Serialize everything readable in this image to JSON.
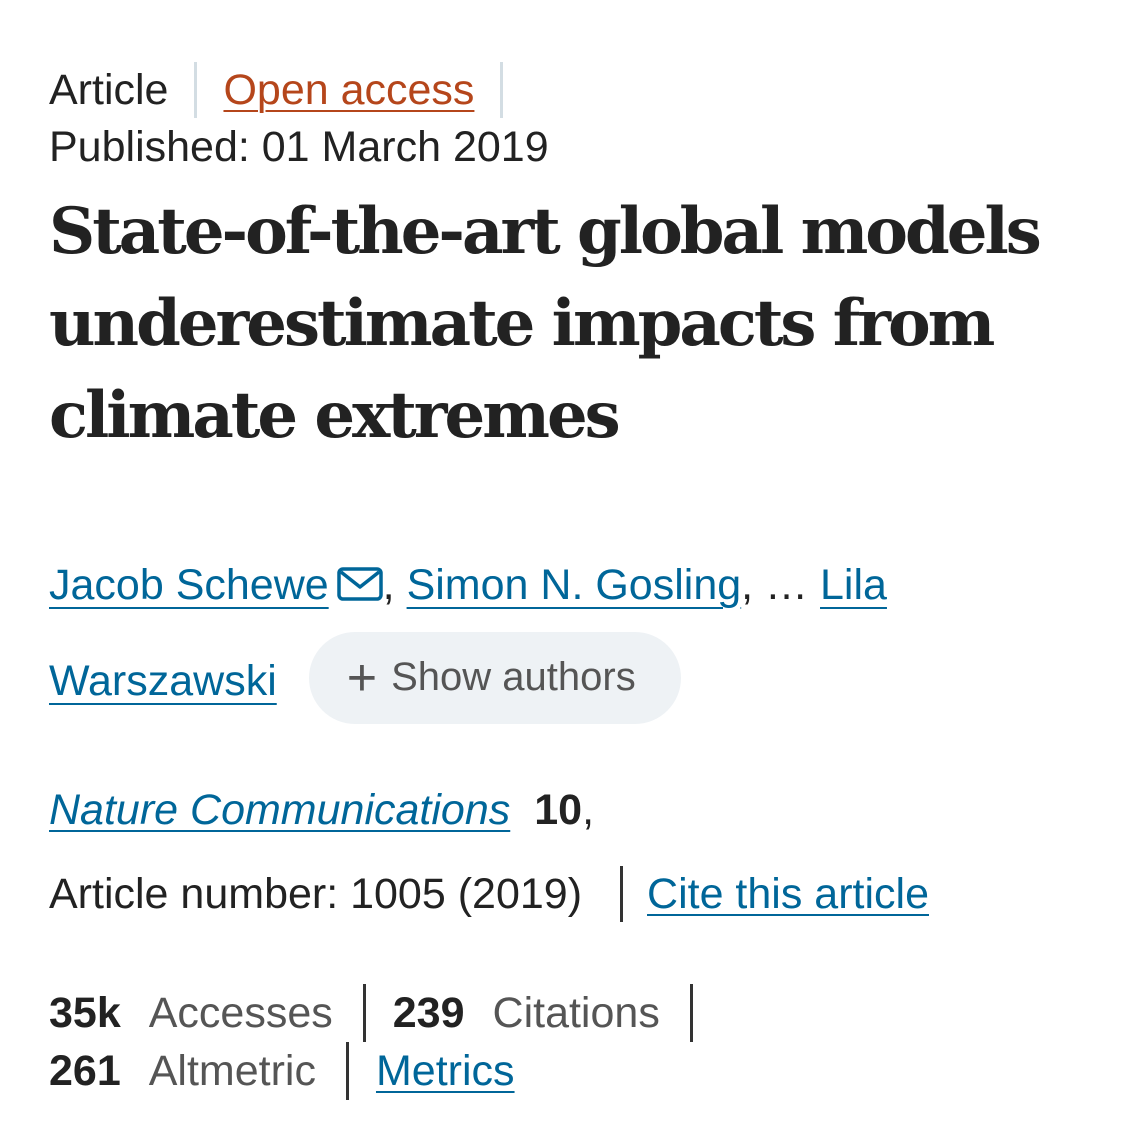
{
  "header": {
    "article_type": "Article",
    "access": "Open access",
    "published": "Published: 01 March 2019"
  },
  "title": "State-of-the-art global models underestimate impacts from climate extremes",
  "authors": {
    "first": "Jacob Schewe",
    "comma1": ",",
    "second": "Simon N. Gosling",
    "ellipsis": ", …",
    "last": "Lila Warszawski",
    "show_authors_label": "Show authors",
    "mail_icon": "mail-icon",
    "plus_icon": "plus-icon"
  },
  "citation": {
    "journal": "Nature Communications",
    "volume": "10",
    "volume_suffix": ",",
    "article_number": "Article number: 1005 (2019)",
    "cite_label": "Cite this article"
  },
  "metrics": {
    "accesses_value": "35k",
    "accesses_label": "Accesses",
    "citations_value": "239",
    "citations_label": "Citations",
    "altmetric_value": "261",
    "altmetric_label": "Altmetric",
    "metrics_link": "Metrics"
  },
  "colors": {
    "link": "#006699",
    "open_access": "#b5461b",
    "text": "#222222",
    "muted": "#555555",
    "button_bg": "#eef2f5"
  }
}
